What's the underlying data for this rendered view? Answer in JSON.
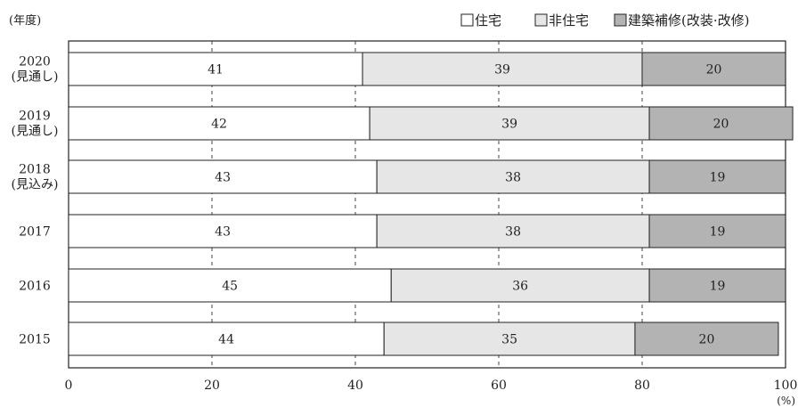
{
  "chart_data": {
    "type": "bar",
    "orientation": "horizontal",
    "stacked": true,
    "year_label": "(年度)",
    "unit_label": "(%)",
    "xlim": [
      0,
      100
    ],
    "xticks": [
      0,
      20,
      40,
      60,
      80,
      100
    ],
    "categories": [
      [
        "2020",
        "(見通し)"
      ],
      [
        "2019",
        "(見通し)"
      ],
      [
        "2018",
        "(見込み)"
      ],
      [
        "2017"
      ],
      [
        "2016"
      ],
      [
        "2015"
      ]
    ],
    "series": [
      {
        "name": "住宅",
        "values": [
          41,
          42,
          43,
          43,
          45,
          44
        ],
        "color": "#ffffff"
      },
      {
        "name": "非住宅",
        "values": [
          39,
          39,
          38,
          38,
          36,
          35
        ],
        "color": "#e6e6e6"
      },
      {
        "name": "建築補修(改装·改修)",
        "values": [
          20,
          20,
          19,
          19,
          19,
          20
        ],
        "color": "#b3b3b3"
      }
    ],
    "legend_position": "top-right",
    "grid": "vertical-dashed"
  }
}
